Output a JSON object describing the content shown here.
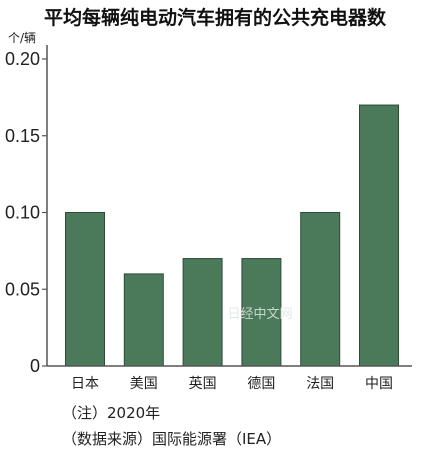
{
  "chart_data": {
    "type": "bar",
    "title": "平均每辆纯电动汽车拥有的公共充电器数",
    "ylabel": "个/辆",
    "categories": [
      "日本",
      "美国",
      "英国",
      "德国",
      "法国",
      "中国"
    ],
    "values": [
      0.1,
      0.06,
      0.07,
      0.07,
      0.1,
      0.17
    ],
    "ylim": [
      0,
      0.2
    ],
    "yticks": [
      0,
      0.05,
      0.1,
      0.15,
      0.2
    ],
    "ytick_labels": [
      "0",
      "0.05",
      "0.10",
      "0.15",
      "0.20"
    ],
    "grid": false,
    "bar_color": "#4a7a5a",
    "bar_stroke_color": "#2f4a37"
  },
  "notes": [
    "（注）2020年",
    "（数据来源）国际能源署（IEA）"
  ],
  "watermark": "日经中文网"
}
